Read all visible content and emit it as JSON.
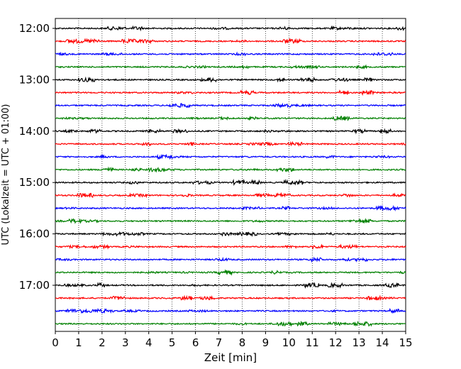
{
  "chart_data": {
    "type": "line",
    "title": "",
    "xlabel": "Zeit  [min]",
    "ylabel": "UTC (Lokalzeit = UTC + 01:00)",
    "xlim": [
      0,
      15
    ],
    "x_ticks": [
      0,
      1,
      2,
      3,
      4,
      5,
      6,
      7,
      8,
      9,
      10,
      11,
      12,
      13,
      14,
      15
    ],
    "y_ticks": [
      "12:00",
      "13:00",
      "14:00",
      "15:00",
      "16:00",
      "17:00"
    ],
    "grid": "vertical dotted",
    "trace_interval_minutes": 15,
    "start_time": "12:00",
    "trace_count": 24,
    "colors_cycle": [
      "#000000",
      "#ff0000",
      "#0000ff",
      "#008000"
    ]
  }
}
